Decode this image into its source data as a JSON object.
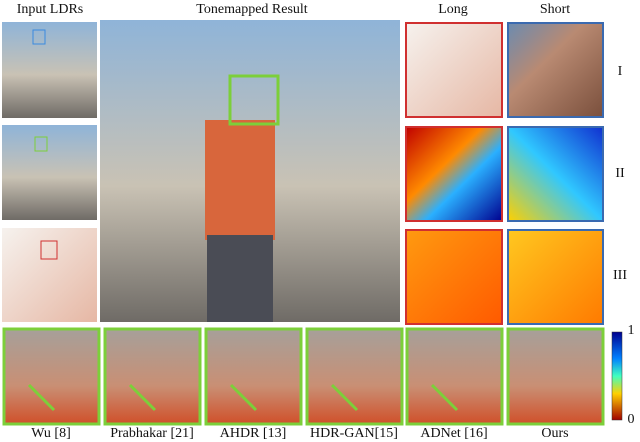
{
  "headers": {
    "input": "Input LDRs",
    "result": "Tonemapped Result",
    "long": "Long",
    "short": "Short"
  },
  "rows": [
    "I",
    "II",
    "III"
  ],
  "colorbar": {
    "max": 1,
    "min": 0
  },
  "methods": [
    "Wu [8]",
    "Prabhakar [21]",
    "AHDR [13]",
    "HDR-GAN[15]",
    "ADNet [16]",
    "Ours"
  ]
}
